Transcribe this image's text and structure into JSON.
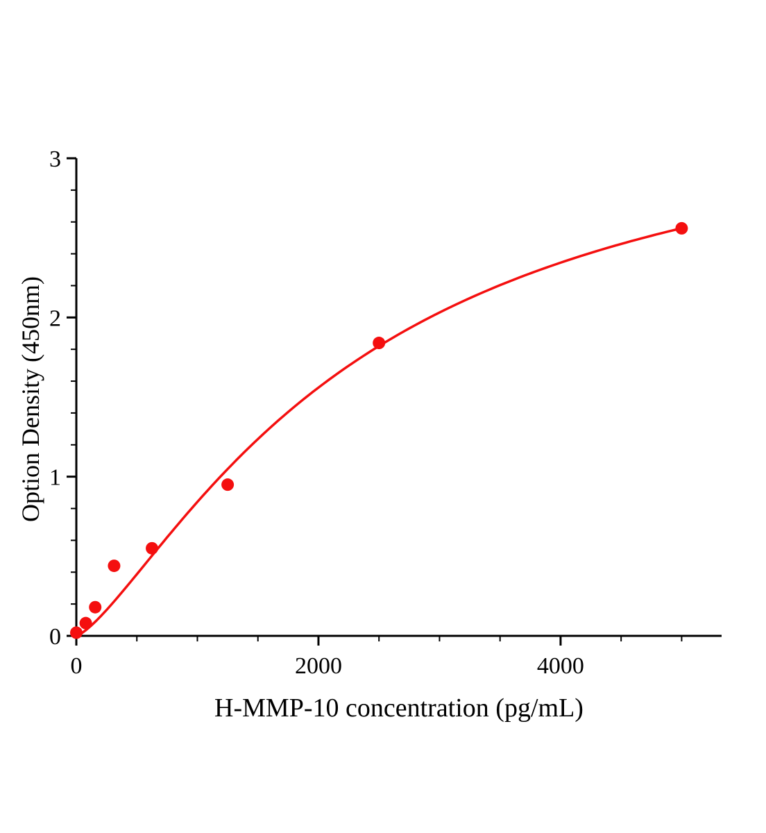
{
  "chart_data": {
    "type": "scatter",
    "title": "",
    "xlabel": "H-MMP-10 concentration (pg/mL)",
    "ylabel": "Option Density (450nm)",
    "points": [
      {
        "x": 0,
        "y": 0.02
      },
      {
        "x": 78,
        "y": 0.08
      },
      {
        "x": 156,
        "y": 0.18
      },
      {
        "x": 312,
        "y": 0.44
      },
      {
        "x": 625,
        "y": 0.55
      },
      {
        "x": 1250,
        "y": 0.95
      },
      {
        "x": 2500,
        "y": 1.84
      },
      {
        "x": 5000,
        "y": 2.56
      }
    ],
    "xlim": [
      0,
      5330
    ],
    "ylim": [
      0,
      3
    ],
    "x_major_ticks": [
      0,
      2000,
      4000
    ],
    "x_minor_step": 500,
    "y_major_ticks": [
      0,
      1,
      2,
      3
    ],
    "y_minor_step": 0.2,
    "grid": false,
    "legend": "none",
    "marker_color": "#f40f0f",
    "line_color": "#f40f0f",
    "axis_color": "#000000",
    "fit": {
      "type": "hill",
      "vmax": 3.472,
      "k": 35073,
      "n": 1.35,
      "x_start": 0,
      "x_end": 5000
    }
  }
}
